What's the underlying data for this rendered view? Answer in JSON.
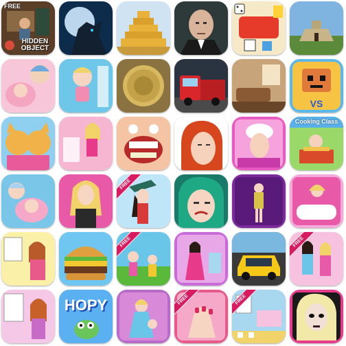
{
  "icons": {
    "r1c1_free_label": "FREE",
    "r1c1_title": "HIDDEN OBJECT",
    "r3c6_title": "Cooking Class",
    "r6c2_title": "HOPY",
    "r4c3_ribbon": "FREE",
    "r5c3_ribbon": "FREE",
    "r6c5_ribbon": "FREE",
    "r5c6_ribbon": "FREE",
    "r6c4_ribbon": "FREE"
  }
}
